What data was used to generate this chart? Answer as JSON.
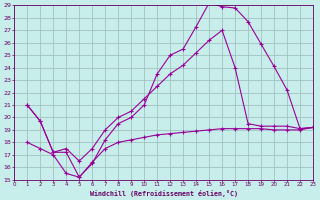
{
  "bg_color": "#c8eeec",
  "line_color": "#990099",
  "grid_color": "#99bbbb",
  "xlim": [
    0,
    23
  ],
  "ylim": [
    15,
    29
  ],
  "xticks": [
    0,
    1,
    2,
    3,
    4,
    5,
    6,
    7,
    8,
    9,
    10,
    11,
    12,
    13,
    14,
    15,
    16,
    17,
    18,
    19,
    20,
    21,
    22,
    23
  ],
  "yticks": [
    15,
    16,
    17,
    18,
    19,
    20,
    21,
    22,
    23,
    24,
    25,
    26,
    27,
    28,
    29
  ],
  "xlabel": "Windchill (Refroidissement éolien,°C)",
  "curve1_x": [
    1,
    2,
    3,
    4,
    5,
    6,
    7,
    8,
    9,
    10,
    11,
    12,
    13,
    14,
    15,
    16,
    17,
    18,
    19,
    20,
    21,
    22,
    23
  ],
  "curve1_y": [
    21.0,
    19.7,
    17.2,
    17.2,
    15.2,
    16.3,
    18.2,
    19.5,
    20.0,
    21.0,
    23.5,
    25.0,
    25.5,
    27.3,
    29.2,
    28.9,
    28.8,
    27.7,
    25.9,
    24.1,
    22.2,
    19.1,
    19.2
  ],
  "curve2_x": [
    1,
    2,
    3,
    4,
    5,
    6,
    7,
    8,
    9,
    10,
    11,
    12,
    13,
    14,
    15,
    16,
    17,
    18,
    19,
    20,
    21,
    22,
    23
  ],
  "curve2_y": [
    21.0,
    19.7,
    17.2,
    17.5,
    16.5,
    17.5,
    19.0,
    20.0,
    20.5,
    21.5,
    22.5,
    23.5,
    24.2,
    25.2,
    26.2,
    27.0,
    24.0,
    19.5,
    19.3,
    19.3,
    19.3,
    19.1,
    19.2
  ],
  "curve3_x": [
    1,
    2,
    3,
    4,
    5,
    6,
    7,
    8,
    9,
    10,
    11,
    12,
    13,
    14,
    15,
    16,
    17,
    18,
    19,
    20,
    21,
    22,
    23
  ],
  "curve3_y": [
    18.0,
    17.5,
    17.0,
    15.5,
    15.2,
    16.4,
    17.5,
    18.0,
    18.2,
    18.4,
    18.6,
    18.7,
    18.8,
    18.9,
    19.0,
    19.1,
    19.1,
    19.1,
    19.1,
    19.0,
    19.0,
    19.0,
    19.2
  ]
}
